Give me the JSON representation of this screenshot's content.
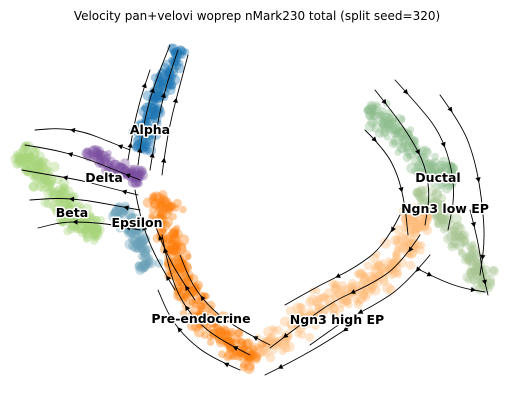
{
  "chart_data": {
    "type": "scatter",
    "title": "Velocity pan+velovi woprep nMark230 total (split seed=320)",
    "xlabel": "",
    "ylabel": "",
    "grid": false,
    "axes_visible": false,
    "overlay": "velocity-streamlines",
    "clusters": [
      {
        "label": "Alpha",
        "color": "#1f77b4"
      },
      {
        "label": "Delta",
        "color": "#7b4fa0"
      },
      {
        "label": "Beta",
        "color": "#a9d67c"
      },
      {
        "label": "Epsilon",
        "color": "#6aa0b8"
      },
      {
        "label": "Ductal",
        "color": "#8fbc8f"
      },
      {
        "label": "Ngn3 low EP",
        "color": "#a7c492"
      },
      {
        "label": "Pre-endocrine",
        "color": "#ff7f0e"
      },
      {
        "label": "Ngn3 high EP",
        "color": "#ffbb78"
      }
    ]
  }
}
